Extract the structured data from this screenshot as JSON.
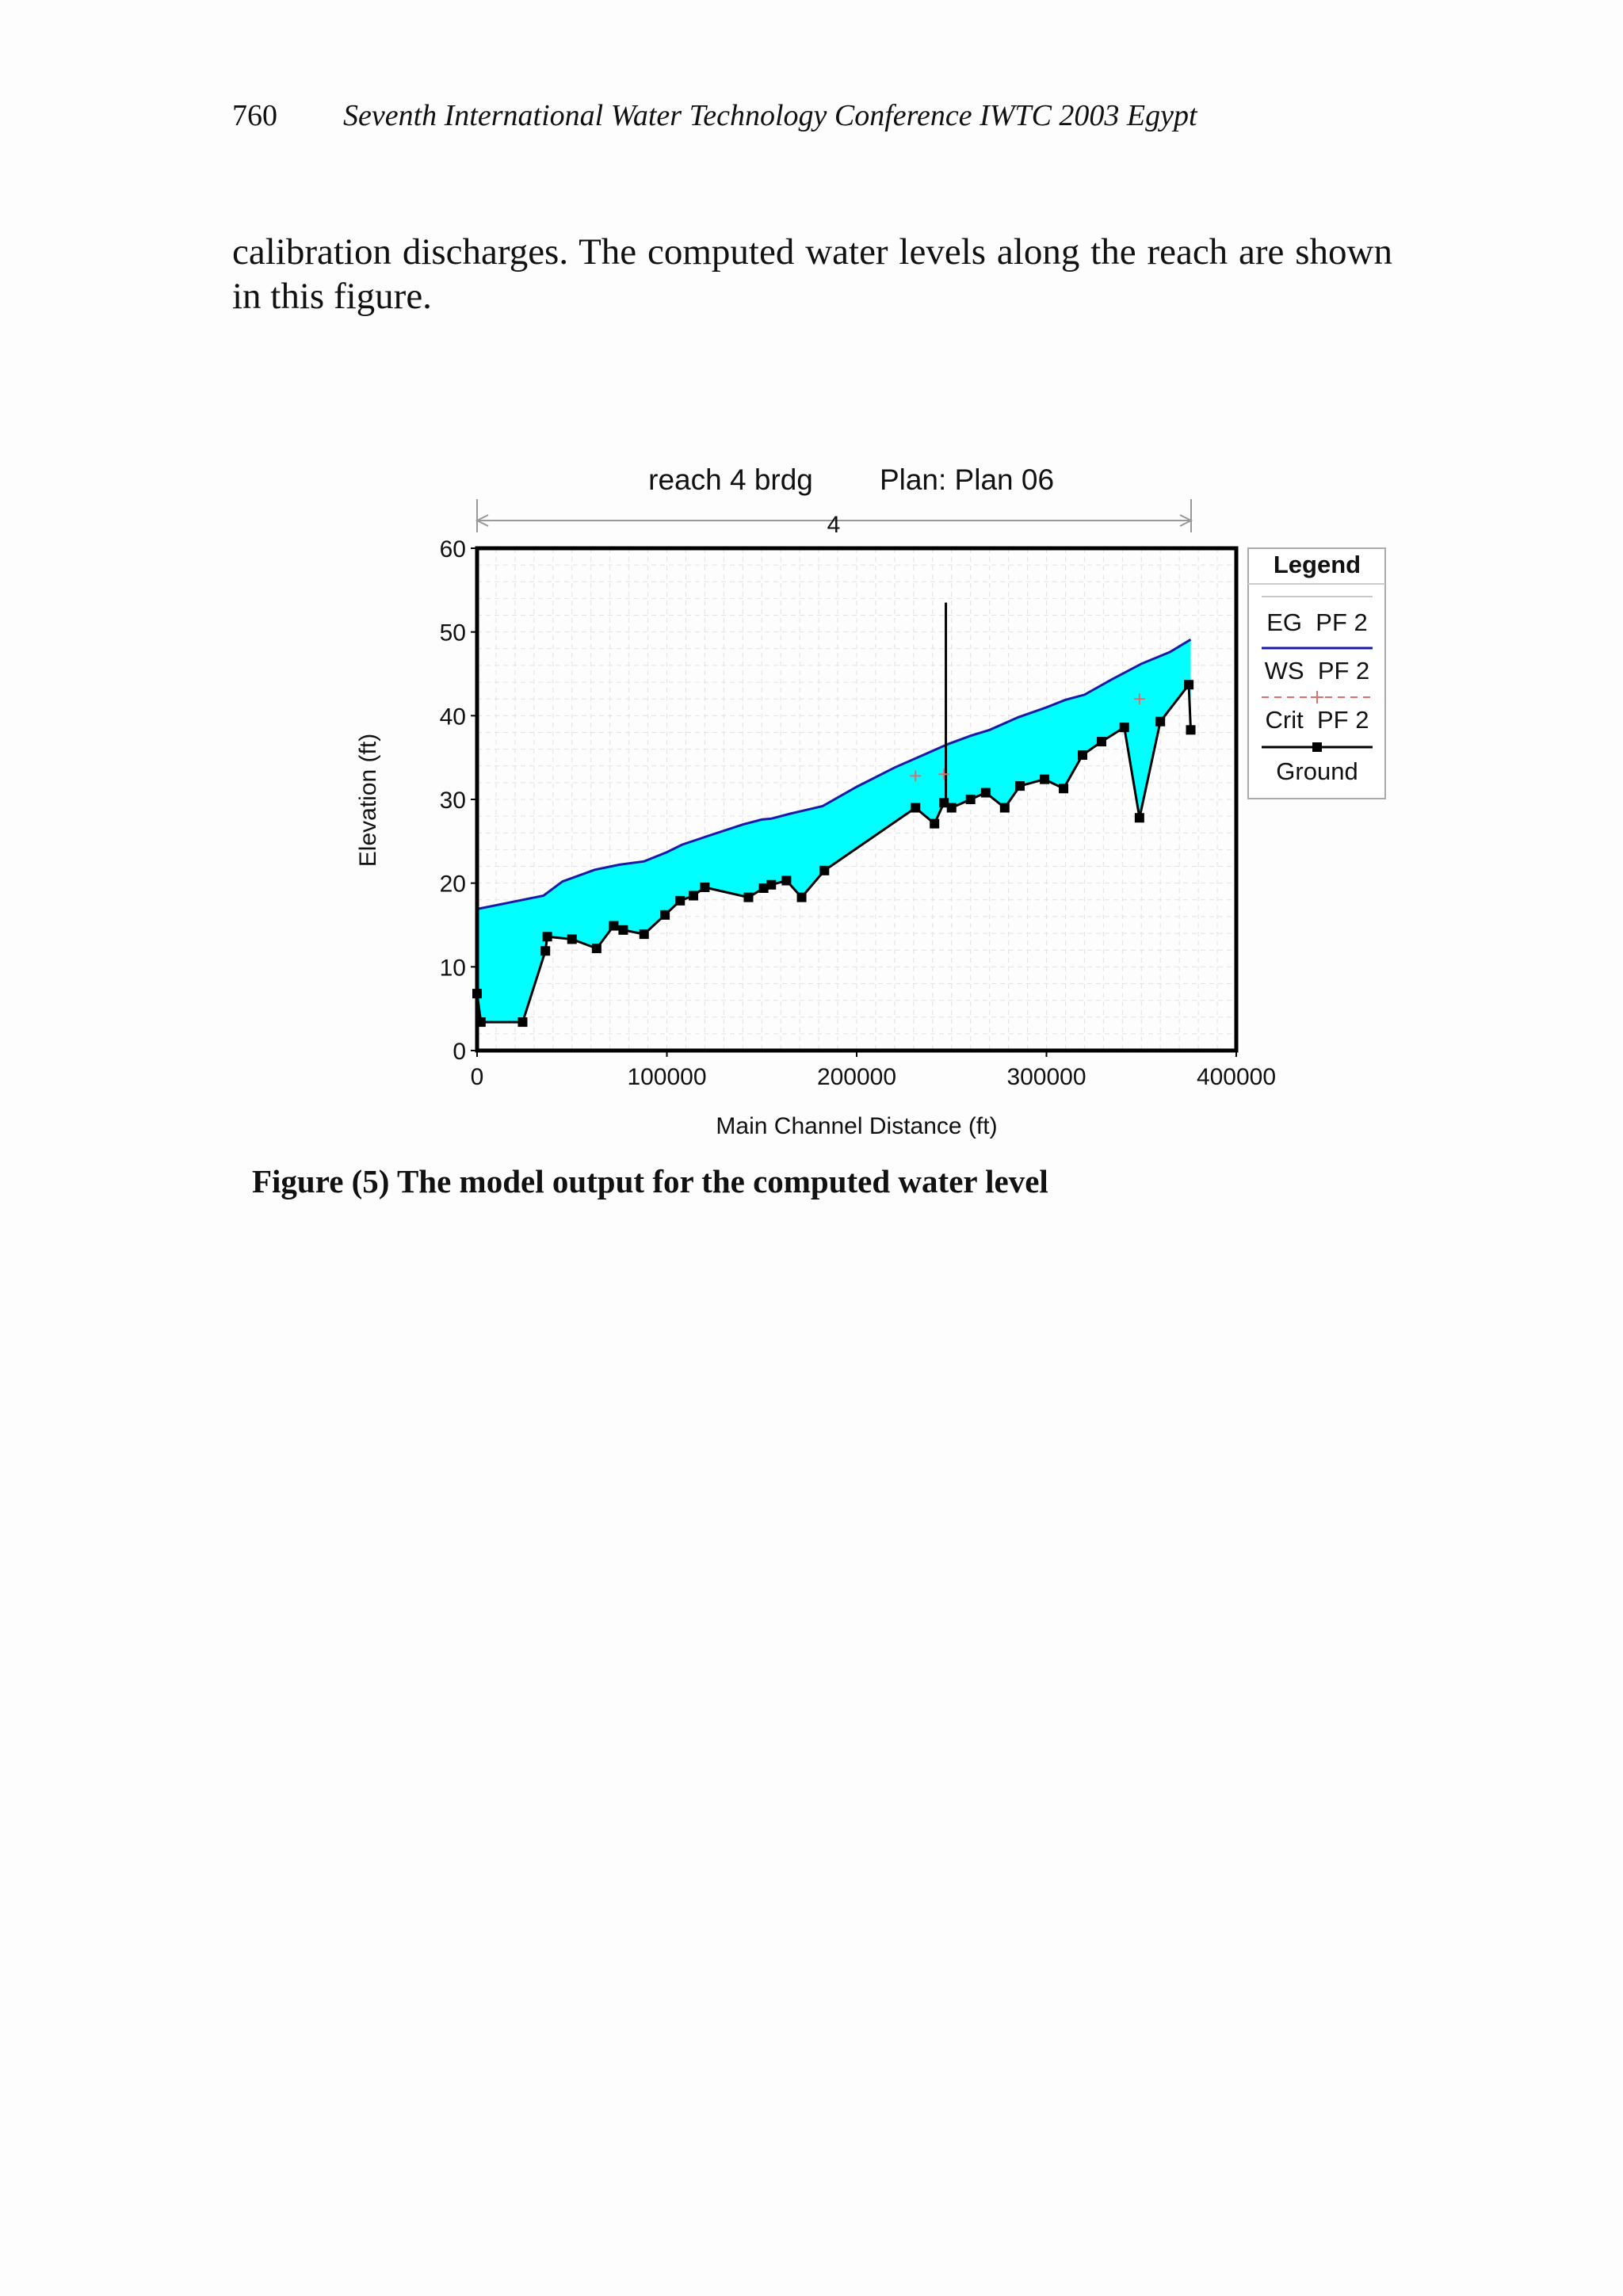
{
  "header": {
    "page_number": "760",
    "running_title": "Seventh International Water Technology Conference IWTC 2003 Egypt"
  },
  "body_paragraph": "calibration discharges. The computed water levels along the reach are shown in this figure.",
  "caption": "Figure (5) The model output for the computed water level",
  "chart_data": {
    "type": "area",
    "title_left": "reach 4 brdg",
    "title_right": "Plan: Plan 06",
    "reach_label": "4",
    "xlabel": "Main Channel Distance (ft)",
    "ylabel": "Elevation (ft)",
    "xlim": [
      0,
      400000
    ],
    "ylim": [
      0,
      60
    ],
    "xticks": [
      0,
      100000,
      200000,
      300000,
      400000
    ],
    "yticks": [
      0,
      10,
      20,
      30,
      40,
      50,
      60
    ],
    "grid": true,
    "legend_title": "Legend",
    "legend_position": "right",
    "fill_color": "#00ffff",
    "series": [
      {
        "name": "EG  PF 2",
        "color": "#c8c8c8",
        "style": "line",
        "x": [
          0,
          35000,
          45000,
          62000,
          75000,
          88000,
          100000,
          108000,
          120000,
          140000,
          150000,
          155000,
          165000,
          182000,
          200000,
          220000,
          240000,
          248000,
          260000,
          270000,
          285000,
          300000,
          310000,
          320000,
          335000,
          350000,
          365000,
          376000
        ],
        "y": [
          16.9,
          18.5,
          20.2,
          21.6,
          22.2,
          22.6,
          23.7,
          24.6,
          25.5,
          27.0,
          27.6,
          27.7,
          28.3,
          29.2,
          31.5,
          33.8,
          35.8,
          36.6,
          37.6,
          38.3,
          39.8,
          41.0,
          41.9,
          42.5,
          44.4,
          46.2,
          47.6,
          49.1
        ]
      },
      {
        "name": "WS  PF 2",
        "color": "#1a1aa8",
        "style": "line",
        "x": [
          0,
          35000,
          45000,
          62000,
          75000,
          88000,
          100000,
          108000,
          120000,
          140000,
          150000,
          155000,
          165000,
          182000,
          200000,
          220000,
          240000,
          248000,
          260000,
          270000,
          285000,
          300000,
          310000,
          320000,
          335000,
          350000,
          365000,
          376000
        ],
        "y": [
          16.9,
          18.5,
          20.2,
          21.6,
          22.2,
          22.6,
          23.7,
          24.6,
          25.5,
          27.0,
          27.6,
          27.7,
          28.3,
          29.2,
          31.5,
          33.8,
          35.8,
          36.6,
          37.6,
          38.3,
          39.8,
          41.0,
          41.9,
          42.5,
          44.4,
          46.2,
          47.6,
          49.1
        ]
      },
      {
        "name": "Crit  PF 2",
        "color": "#d87070",
        "style": "plus",
        "x": [
          231000,
          246000,
          349000
        ],
        "y": [
          32.8,
          33.0,
          42.0
        ]
      },
      {
        "name": "Ground",
        "color": "#000000",
        "style": "line-square",
        "x": [
          0,
          2000,
          24000,
          36000,
          37000,
          50000,
          63000,
          72000,
          77000,
          88000,
          99000,
          107000,
          114000,
          120000,
          143000,
          151000,
          155000,
          163000,
          171000,
          183000,
          231000,
          241000,
          246000,
          250000,
          260000,
          268000,
          278000,
          286000,
          299000,
          309000,
          319000,
          329000,
          341000,
          349000,
          360000,
          375000,
          376000
        ],
        "y": [
          6.8,
          3.4,
          3.4,
          11.9,
          13.6,
          13.3,
          12.2,
          14.9,
          14.4,
          13.9,
          16.2,
          17.9,
          18.5,
          19.5,
          18.3,
          19.4,
          19.8,
          20.3,
          18.3,
          21.5,
          29.0,
          27.1,
          29.6,
          29.0,
          30.0,
          30.8,
          29.0,
          31.6,
          32.4,
          31.3,
          35.3,
          36.9,
          38.6,
          27.8,
          39.3,
          43.7,
          38.3
        ]
      }
    ],
    "annotations": [
      {
        "type": "vertical_line",
        "x": 247000,
        "y_from": 29.6,
        "y_to": 53.5,
        "color": "#000000"
      }
    ]
  }
}
